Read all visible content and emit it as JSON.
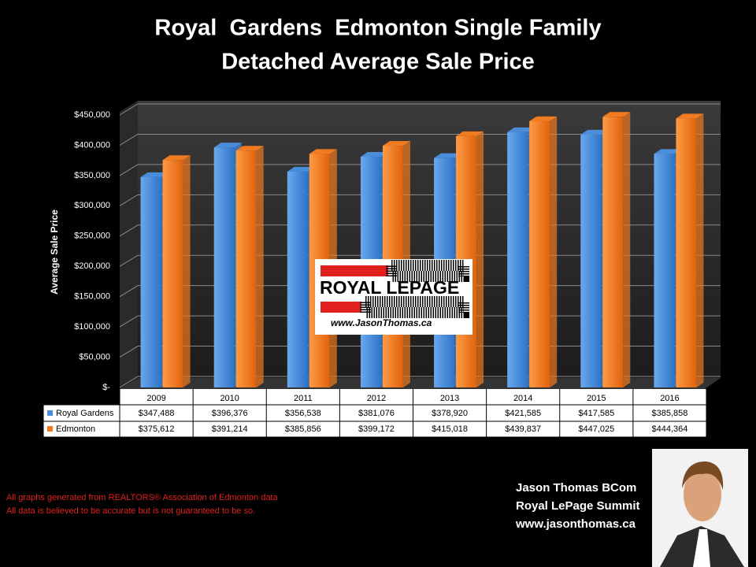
{
  "chart_data": {
    "type": "bar",
    "title": [
      "Royal  Gardens  Edmonton Single Family",
      "Detached Average Sale Price"
    ],
    "y_label": "Average Sale Price",
    "categories": [
      "2009",
      "2010",
      "2011",
      "2012",
      "2013",
      "2014",
      "2015",
      "2016"
    ],
    "series": [
      {
        "name": "Royal Gardens",
        "color": "#4a8edb",
        "values": [
          347488,
          396376,
          356538,
          381076,
          378920,
          421585,
          417585,
          385858
        ],
        "value_labels": [
          "$347,488",
          "$396,376",
          "$356,538",
          "$381,076",
          "$378,920",
          "$421,585",
          "$417,585",
          "$385,858"
        ]
      },
      {
        "name": "Edmonton",
        "color": "#f07b20",
        "values": [
          375612,
          391214,
          385856,
          399172,
          415018,
          439837,
          447025,
          444364
        ],
        "value_labels": [
          "$375,612",
          "$391,214",
          "$385,856",
          "$399,172",
          "$415,018",
          "$439,837",
          "$447,025",
          "$444,364"
        ]
      }
    ],
    "ylim": [
      0,
      450000
    ],
    "yticks": [
      {
        "value": 0,
        "label": "$-"
      },
      {
        "value": 50000,
        "label": "$50,000"
      },
      {
        "value": 100000,
        "label": "$100,000"
      },
      {
        "value": 150000,
        "label": "$150,000"
      },
      {
        "value": 200000,
        "label": "$200,000"
      },
      {
        "value": 250000,
        "label": "$250,000"
      },
      {
        "value": 300000,
        "label": "$300,000"
      },
      {
        "value": 350000,
        "label": "$350,000"
      },
      {
        "value": 400000,
        "label": "$400,000"
      },
      {
        "value": 450000,
        "label": "$450,000"
      }
    ],
    "grid": true
  },
  "logo": {
    "brand": "ROYAL LEPAGE",
    "url": "www.JasonThomas.ca"
  },
  "notes": [
    "All graphs generated from REALTORS® Association of Edmonton data",
    "All data is believed to be accurate but is not guaranteed to be so."
  ],
  "signature": [
    "Jason Thomas BCom",
    "Royal LePage Summit",
    "www.jasonthomas.ca"
  ]
}
